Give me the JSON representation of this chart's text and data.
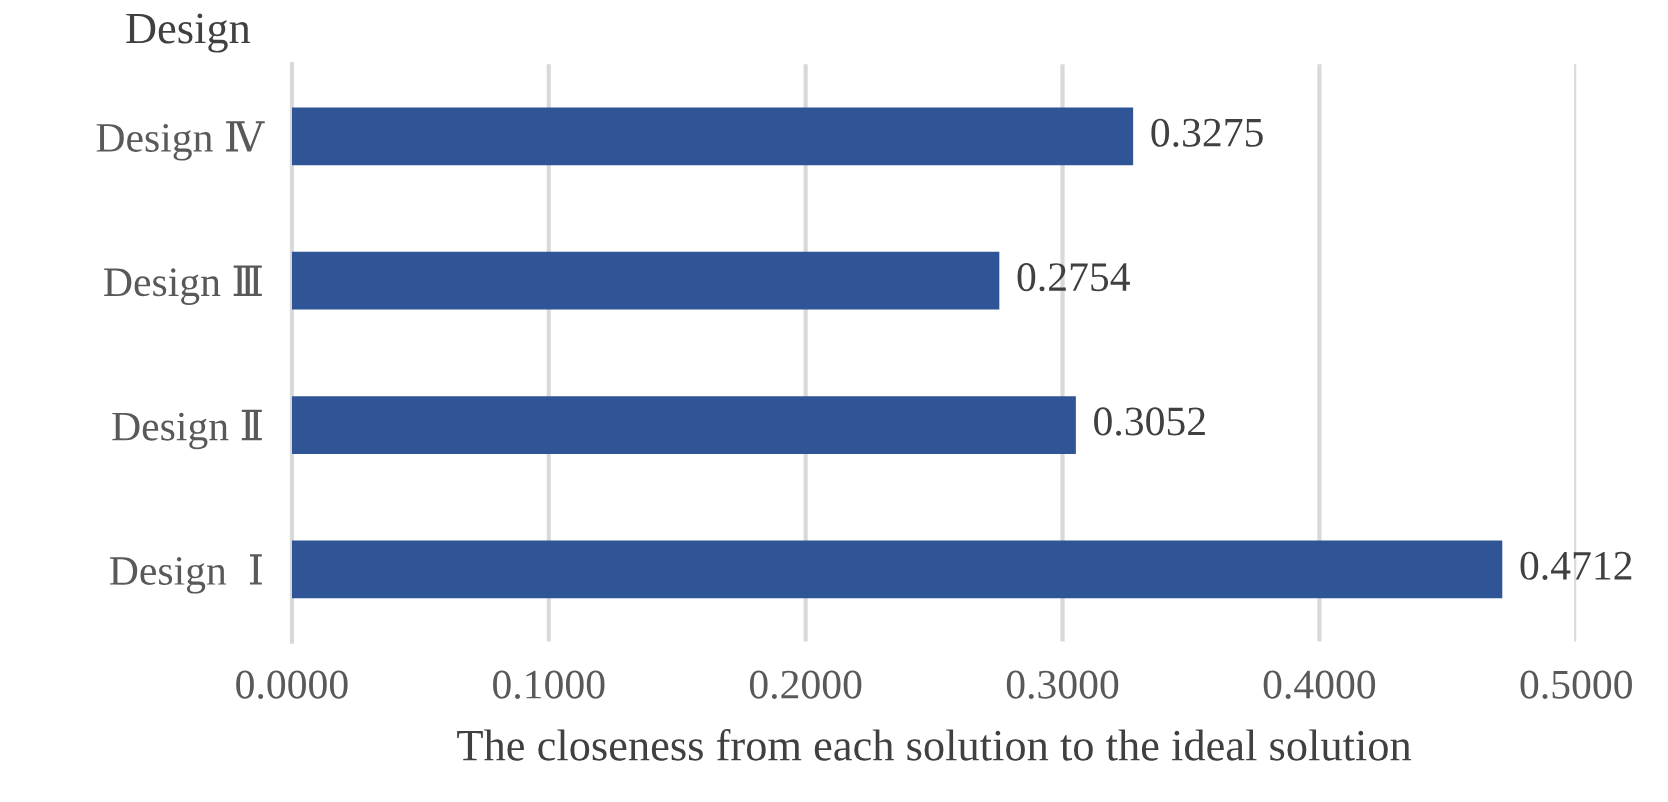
{
  "chart_data": {
    "type": "bar",
    "orientation": "horizontal",
    "ylabel": "Design",
    "xlabel": "The closeness from each solution to the ideal solution",
    "categories": [
      "Design Ⅳ",
      "Design Ⅲ",
      "Design Ⅱ",
      "Design  Ⅰ"
    ],
    "values": [
      0.3275,
      0.2754,
      0.3052,
      0.4712
    ],
    "color": "#2f5597",
    "data_labels": true,
    "xlim": [
      0,
      0.5
    ],
    "xticks": [
      {
        "value": 0,
        "label": "0.0000"
      },
      {
        "value": 0.1,
        "label": "0.1000"
      },
      {
        "value": 0.2,
        "label": "0.2000"
      },
      {
        "value": 0.3,
        "label": "0.3000"
      },
      {
        "value": 0.4,
        "label": "0.4000"
      },
      {
        "value": 0.5,
        "label": "0.5000"
      }
    ],
    "grid": "x"
  }
}
